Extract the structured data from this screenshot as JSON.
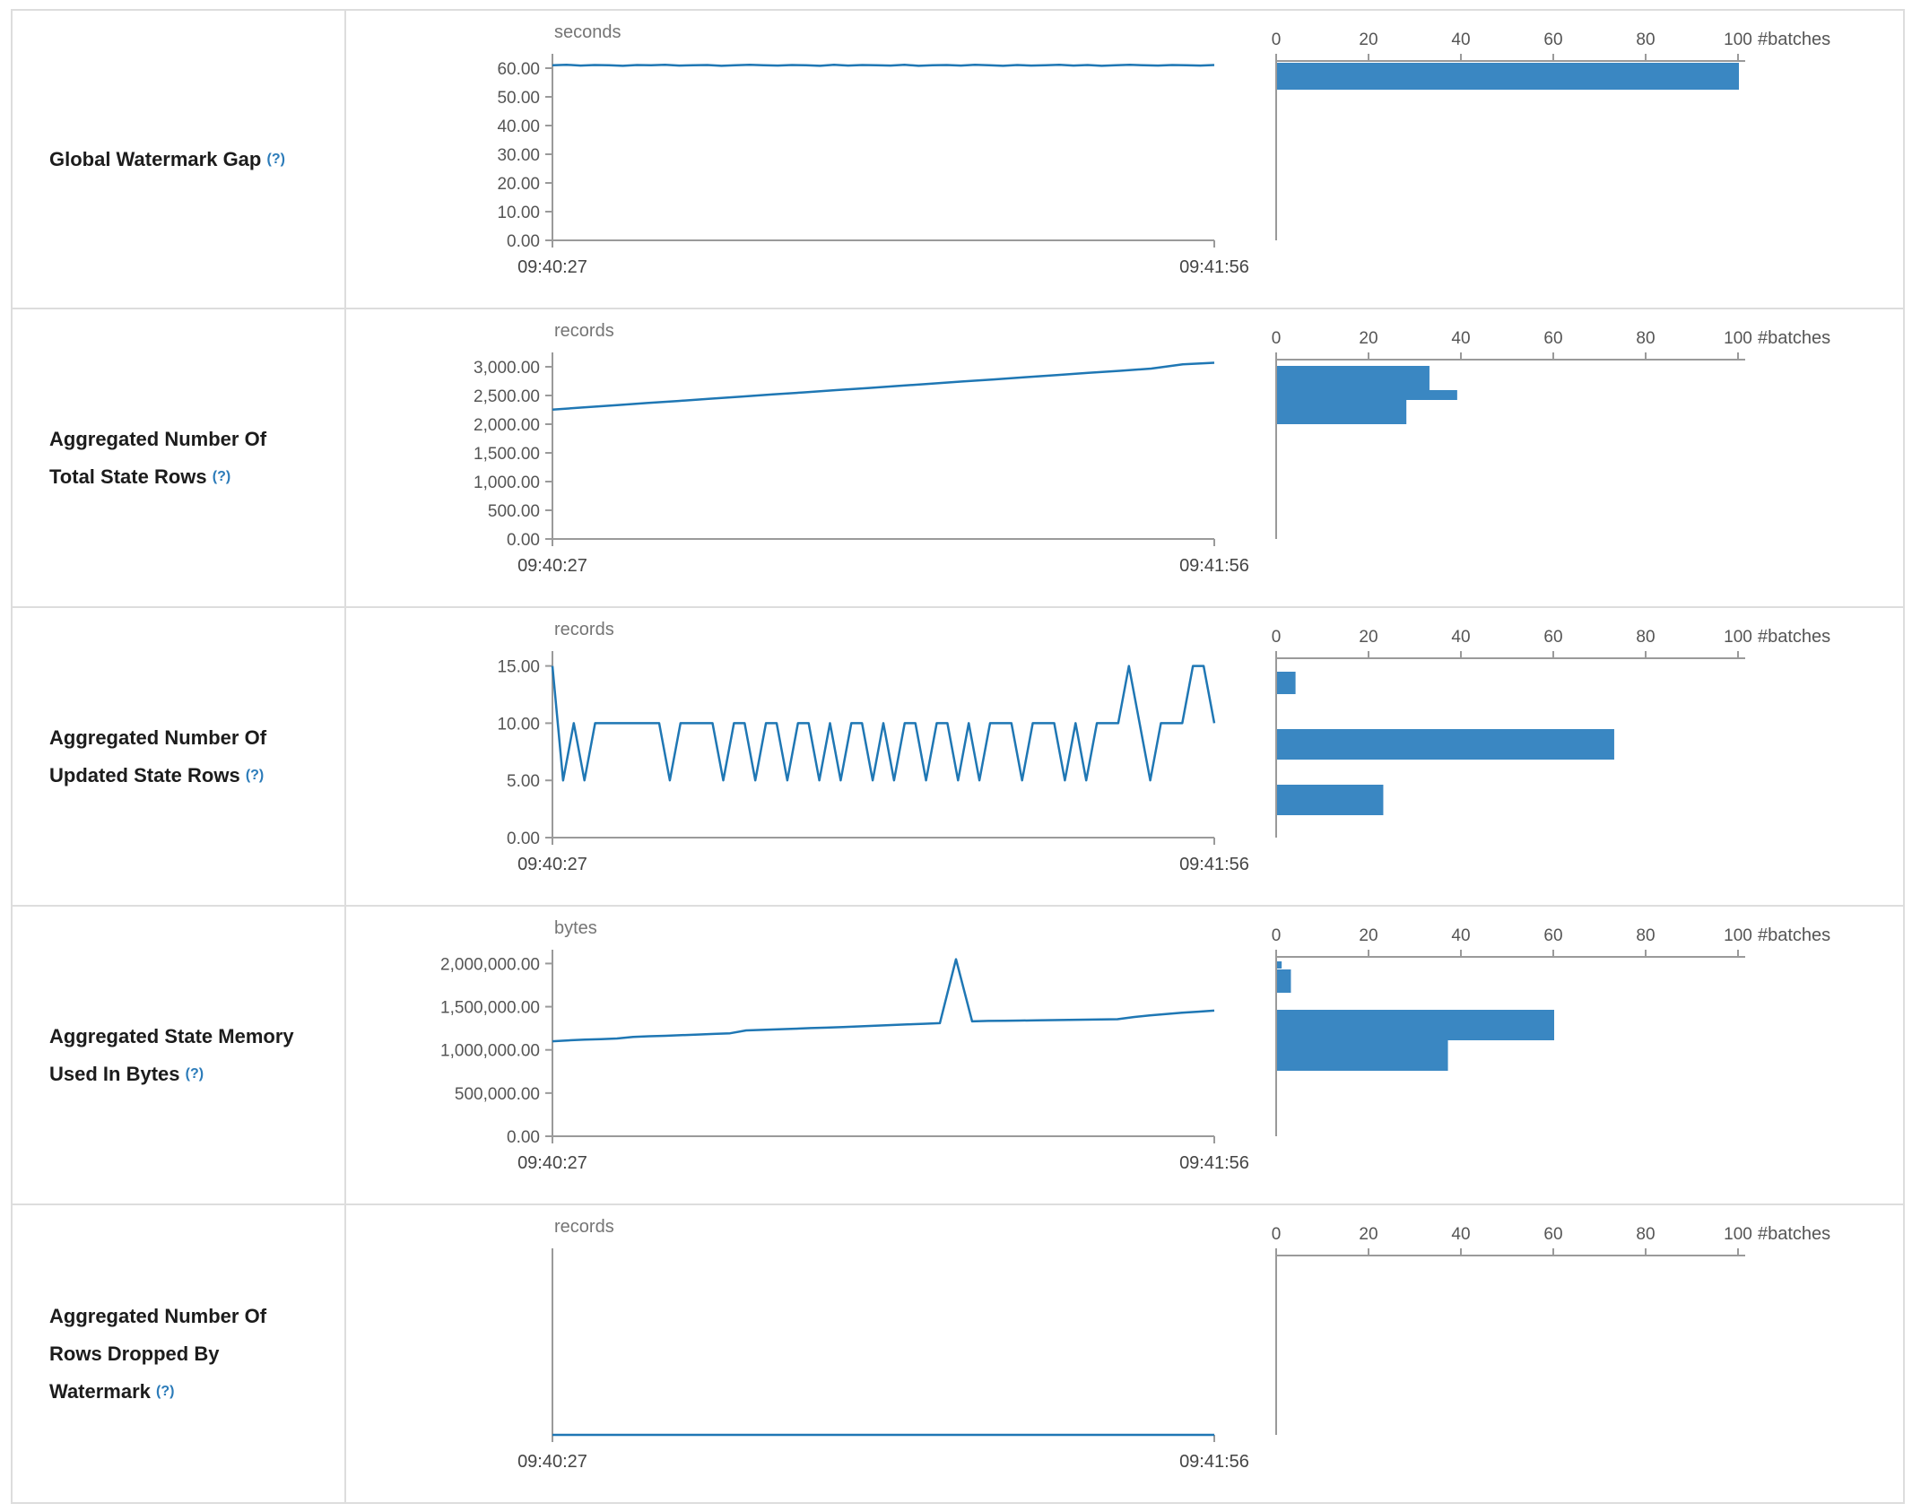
{
  "colors": {
    "line": "#1f77b4",
    "bar": "#3a87c2",
    "axis": "#9a9a9a",
    "tick_text": "#555555",
    "time_text": "#444444",
    "unit_text": "#757575",
    "border": "#dddddd",
    "help_link": "#2b7bb9",
    "label_text": "#1c1c1c"
  },
  "time_axis": {
    "start": "09:40:27",
    "end": "09:41:56"
  },
  "histogram_axis": {
    "ticks": [
      0,
      20,
      40,
      60,
      80,
      100
    ],
    "max": 100,
    "label": "#batches"
  },
  "chart_data": [
    {
      "type": "line",
      "label": "Global Watermark Gap",
      "help_label": "(?)",
      "timeline": {
        "unit": "seconds",
        "y_ticks": [
          0,
          10,
          20,
          30,
          40,
          50,
          60
        ],
        "y_max": 65,
        "x_start": "09:40:27",
        "x_end": "09:41:56",
        "values": [
          61,
          61.2,
          60.9,
          61.1,
          61,
          60.8,
          61.1,
          61,
          61.2,
          60.9,
          61,
          61.1,
          60.8,
          61,
          61.2,
          61,
          60.9,
          61.1,
          61,
          60.8,
          61.2,
          60.9,
          61.1,
          61,
          60.9,
          61.2,
          60.8,
          61,
          61.1,
          60.9,
          61.2,
          61,
          60.8,
          61.1,
          60.9,
          61,
          61.2,
          60.9,
          61.1,
          60.8,
          61,
          61.2,
          61,
          60.9,
          61.1,
          61,
          60.9,
          61.1
        ]
      },
      "histogram": {
        "unit": "#batches",
        "bars": [
          {
            "count": 100,
            "top": 2,
            "height": 30
          }
        ]
      }
    },
    {
      "type": "line",
      "label": "Aggregated Number Of Total State Rows",
      "help_label": "(?)",
      "timeline": {
        "unit": "records",
        "y_ticks": [
          0,
          500,
          1000,
          1500,
          2000,
          2500,
          3000
        ],
        "y_max": 3250,
        "x_start": "09:40:27",
        "x_end": "09:41:56",
        "values": [
          2255,
          2292,
          2330,
          2368,
          2405,
          2443,
          2480,
          2518,
          2555,
          2593,
          2630,
          2668,
          2705,
          2743,
          2780,
          2818,
          2855,
          2893,
          2930,
          2968,
          3043,
          3070
        ]
      },
      "histogram": {
        "unit": "#batches",
        "bars": [
          {
            "count": 33,
            "top": 7,
            "height": 27
          },
          {
            "count": 39,
            "top": 34,
            "height": 11
          },
          {
            "count": 28,
            "top": 45,
            "height": 27
          }
        ]
      }
    },
    {
      "type": "line",
      "label": "Aggregated Number Of Updated State Rows",
      "help_label": "(?)",
      "timeline": {
        "unit": "records",
        "y_ticks": [
          0,
          5,
          10,
          15
        ],
        "y_max": 16.3,
        "x_start": "09:40:27",
        "x_end": "09:41:56",
        "values": [
          15,
          5,
          10,
          5,
          10,
          10,
          10,
          10,
          10,
          10,
          10,
          5,
          10,
          10,
          10,
          10,
          5,
          10,
          10,
          5,
          10,
          10,
          5,
          10,
          10,
          5,
          10,
          5,
          10,
          10,
          5,
          10,
          5,
          10,
          10,
          5,
          10,
          10,
          5,
          10,
          5,
          10,
          10,
          10,
          5,
          10,
          10,
          10,
          5,
          10,
          5,
          10,
          10,
          10,
          15,
          10,
          5,
          10,
          10,
          10,
          15,
          15,
          10
        ]
      },
      "histogram": {
        "unit": "#batches",
        "bars": [
          {
            "count": 4,
            "top": 15,
            "height": 25
          },
          {
            "count": 73,
            "top": 79,
            "height": 34
          },
          {
            "count": 23,
            "top": 141,
            "height": 34
          }
        ]
      }
    },
    {
      "type": "line",
      "label": "Aggregated State Memory Used In Bytes",
      "help_label": "(?)",
      "timeline": {
        "unit": "bytes",
        "y_ticks": [
          0,
          500000,
          1000000,
          1500000,
          2000000
        ],
        "y_max": 2160000,
        "x_start": "09:40:27",
        "x_end": "09:41:56",
        "values": [
          1100000,
          1110000,
          1118000,
          1125000,
          1132000,
          1150000,
          1158000,
          1163000,
          1170000,
          1178000,
          1185000,
          1192000,
          1225000,
          1232000,
          1238000,
          1245000,
          1252000,
          1258000,
          1265000,
          1272000,
          1280000,
          1288000,
          1295000,
          1302000,
          1310000,
          2050000,
          1330000,
          1335000,
          1338000,
          1340000,
          1342000,
          1345000,
          1348000,
          1350000,
          1352000,
          1355000,
          1380000,
          1400000,
          1415000,
          1430000,
          1442000,
          1455000
        ]
      },
      "histogram": {
        "unit": "#batches",
        "bars": [
          {
            "count": 1,
            "top": 5,
            "height": 8
          },
          {
            "count": 3,
            "top": 14,
            "height": 26
          },
          {
            "count": 60,
            "top": 59,
            "height": 34
          },
          {
            "count": 37,
            "top": 93,
            "height": 34
          }
        ]
      }
    },
    {
      "type": "line",
      "label": "Aggregated Number Of Rows Dropped By Watermark",
      "help_label": "(?)",
      "timeline": {
        "unit": "records",
        "y_ticks": [],
        "y_max": 1,
        "x_start": "09:40:27",
        "x_end": "09:41:56",
        "values": [
          0,
          0,
          0,
          0,
          0,
          0,
          0,
          0,
          0,
          0
        ]
      },
      "histogram": {
        "unit": "#batches",
        "bars": []
      }
    }
  ]
}
